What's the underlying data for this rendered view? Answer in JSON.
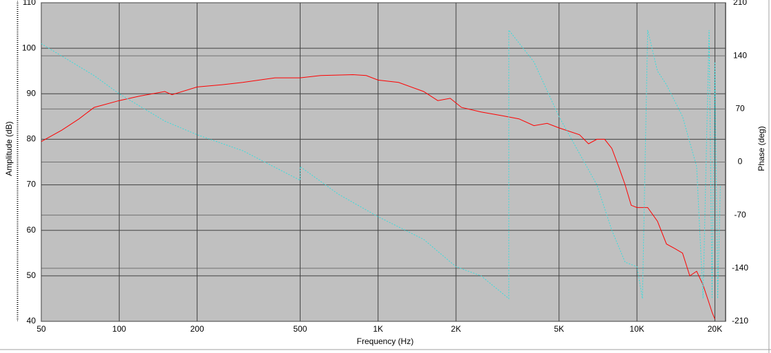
{
  "chart_data": {
    "type": "line",
    "x_label": "Frequency (Hz)",
    "y_label": "Amplitude (dB)",
    "y2_label": "Phase (deg)",
    "xscale": "log",
    "grid": true,
    "xlim": [
      50,
      22000
    ],
    "xticks": [
      50,
      100,
      200,
      500,
      {
        "value": 1000,
        "label": "1K"
      },
      {
        "value": 2000,
        "label": "2K"
      },
      {
        "value": 5000,
        "label": "5K"
      },
      {
        "value": 10000,
        "label": "10K"
      },
      {
        "value": 20000,
        "label": "20K"
      }
    ],
    "ylim": [
      40,
      110
    ],
    "yticks": [
      40,
      50,
      60,
      70,
      80,
      90,
      100,
      110
    ],
    "y2lim": [
      -210,
      210
    ],
    "y2ticks": [
      -210,
      -140,
      -70,
      0,
      70,
      140,
      210
    ],
    "series": [
      {
        "color": "#ff0000",
        "dash": false,
        "x": [
          50,
          60,
          70,
          80,
          100,
          120,
          150,
          160,
          200,
          250,
          300,
          400,
          500,
          600,
          800,
          900,
          1000,
          1200,
          1500,
          1700,
          1900,
          2100,
          2500,
          3000,
          3500,
          4000,
          4500,
          5000,
          6000,
          6500,
          7000,
          7500,
          8000,
          8500,
          9000,
          9500,
          10000,
          11000,
          12000,
          13000,
          14000,
          15000,
          16000,
          17000,
          18000,
          19000,
          19500,
          20000
        ],
        "values": [
          79.5,
          82,
          84.5,
          87,
          88.5,
          89.5,
          90.5,
          89.8,
          91.5,
          92,
          92.5,
          93.5,
          93.5,
          94,
          94.2,
          94,
          93,
          92.5,
          90.5,
          88.5,
          89,
          87,
          86,
          85.2,
          84.5,
          83,
          83.5,
          82.5,
          81,
          79,
          80,
          80,
          78,
          74,
          70,
          65.5,
          65,
          65,
          62,
          57,
          56,
          55,
          50,
          51,
          48,
          44,
          42,
          40.5
        ]
      },
      {
        "color": "#33dddd",
        "dash": true,
        "axis": "y2",
        "x": [
          50,
          80,
          100,
          150,
          200,
          300,
          500,
          500,
          700,
          1000,
          1500,
          2000,
          2500,
          3200,
          3200,
          4000,
          5000,
          7000,
          8000,
          9000,
          10000,
          10500,
          11000,
          12000,
          13000,
          15000,
          17000,
          18000,
          19000,
          19500,
          20000,
          20500,
          21000
        ],
        "values": [
          156,
          114,
          90,
          54,
          36,
          15,
          -24,
          -6,
          -42,
          -72,
          -102,
          -138,
          -150,
          -180,
          174,
          132,
          60,
          -30,
          -90,
          -132,
          -138,
          -180,
          174,
          120,
          102,
          60,
          -6,
          -180,
          174,
          -180,
          132,
          -180,
          -30
        ]
      }
    ]
  }
}
